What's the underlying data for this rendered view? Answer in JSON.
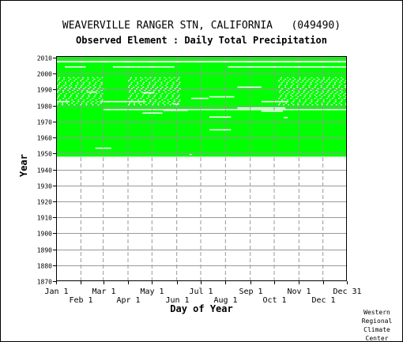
{
  "station_title": "WEAVERVILLE RANGER STN, CALIFORNIA   (049490)",
  "element_title": "Observed Element : Daily Total Precipitation",
  "credit_lines": [
    "Western",
    "Regional",
    "Climate",
    "Center"
  ],
  "colors": {
    "data_fill": "#00ff00",
    "gridline": "#999999",
    "frame": "#000000",
    "background": "#ffffff"
  },
  "chart_data": {
    "type": "heatmap",
    "xlabel": "Day of Year",
    "ylabel": "Year",
    "xlim": [
      1,
      365
    ],
    "ylim": [
      1870,
      2011
    ],
    "x_ticks_top_row": [
      {
        "label": "Jan 1",
        "day": 1
      },
      {
        "label": "Mar 1",
        "day": 60
      },
      {
        "label": "May 1",
        "day": 121
      },
      {
        "label": "Jul 1",
        "day": 182
      },
      {
        "label": "Sep 1",
        "day": 244
      },
      {
        "label": "Nov 1",
        "day": 305
      },
      {
        "label": "Dec 31",
        "day": 365
      }
    ],
    "x_ticks_bottom_row": [
      {
        "label": "Feb 1",
        "day": 32
      },
      {
        "label": "Apr 1",
        "day": 91
      },
      {
        "label": "Jun 1",
        "day": 152
      },
      {
        "label": "Aug 1",
        "day": 213
      },
      {
        "label": "Oct 1",
        "day": 274
      },
      {
        "label": "Dec 1",
        "day": 335
      }
    ],
    "y_ticks": [
      "1870",
      "1880",
      "1890",
      "1900",
      "1910",
      "1920",
      "1930",
      "1940",
      "1950",
      "1960",
      "1970",
      "1980",
      "1990",
      "2000",
      "2010"
    ],
    "grid": true,
    "coverage": {
      "record_start_year": 1948,
      "record_end_year": 2011,
      "full_gap_years": [
        2007.5
      ],
      "gap_segments": [
        {
          "year": 1953.3,
          "day_start": 50,
          "day_end": 70
        },
        {
          "year": 1977.5,
          "day_start": 60,
          "day_end": 365
        },
        {
          "year": 1975.3,
          "day_start": 109,
          "day_end": 134
        },
        {
          "year": 1977.0,
          "day_start": 135,
          "day_end": 166
        },
        {
          "year": 1984.5,
          "day_start": 170,
          "day_end": 192
        },
        {
          "year": 1985.5,
          "day_start": 193,
          "day_end": 224
        },
        {
          "year": 1981.0,
          "day_start": 147,
          "day_end": 155
        },
        {
          "year": 1972.8,
          "day_start": 193,
          "day_end": 220
        },
        {
          "year": 1964.8,
          "day_start": 193,
          "day_end": 220
        },
        {
          "year": 1991.5,
          "day_start": 228,
          "day_end": 258
        },
        {
          "year": 1978.5,
          "day_start": 228,
          "day_end": 288
        },
        {
          "year": 1976.5,
          "day_start": 258,
          "day_end": 285
        },
        {
          "year": 1972.5,
          "day_start": 286,
          "day_end": 291
        },
        {
          "year": 1988.4,
          "day_start": 39,
          "day_end": 52
        },
        {
          "year": 1988.0,
          "day_start": 109,
          "day_end": 124
        },
        {
          "year": 2004.2,
          "day_start": 12,
          "day_end": 38
        },
        {
          "year": 2004.2,
          "day_start": 72,
          "day_end": 149
        },
        {
          "year": 2004.2,
          "day_start": 216,
          "day_end": 365
        },
        {
          "year": 1949.4,
          "day_start": 168,
          "day_end": 171
        },
        {
          "year": 1982.5,
          "day_start": 1,
          "day_end": 18
        },
        {
          "year": 1982.5,
          "day_start": 56,
          "day_end": 112
        },
        {
          "year": 1982.5,
          "day_start": 258,
          "day_end": 291
        }
      ],
      "speckled_year_range": [
        1980,
        1997
      ],
      "speckled_day_ranges": [
        [
          1,
          60
        ],
        [
          91,
          155
        ],
        [
          279,
          365
        ]
      ]
    }
  }
}
